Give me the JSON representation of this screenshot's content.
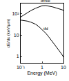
{
  "chart_data": {
    "type": "line",
    "x_label": "Energy (MeV)",
    "y_label": "dE/dx (keV/μm)",
    "log": true,
    "grid": false,
    "x": [
      0.1,
      0.15,
      0.2,
      0.3,
      0.5,
      0.7,
      1,
      1.5,
      2,
      3,
      5,
      7,
      10
    ],
    "series": [
      {
        "name": "αfree",
        "color": "#000000",
        "line_style": "solid",
        "values": [
          70,
          90,
          110,
          140,
          180,
          210,
          235,
          240,
          230,
          210,
          180,
          160,
          145
        ]
      },
      {
        "name": "tfd",
        "color": "#000000",
        "line_style": "solid",
        "values": [
          50,
          48,
          45,
          40,
          32,
          25,
          18,
          12,
          8.5,
          5,
          2.6,
          1.6,
          0.95
        ]
      }
    ],
    "xlim": [
      0.1,
      10
    ],
    "xticks": [
      {
        "value": 0.1,
        "label": "10⁻¹"
      },
      1,
      10
    ],
    "ylim": [
      0.5,
      300
    ],
    "yticks": [
      1,
      10,
      {
        "value": 100,
        "label": "10²"
      }
    ]
  }
}
